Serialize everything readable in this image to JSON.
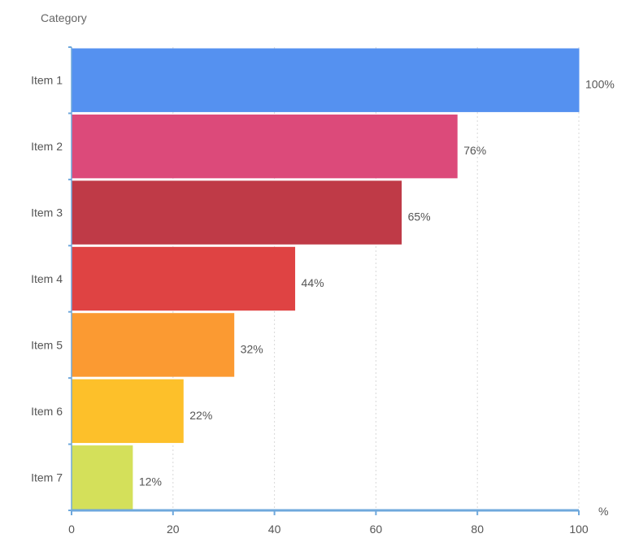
{
  "chart_data": {
    "type": "bar",
    "orientation": "horizontal",
    "y_axis_title": "Category",
    "x_unit_label": "%",
    "categories": [
      "Item 1",
      "Item 2",
      "Item 3",
      "Item 4",
      "Item 5",
      "Item 6",
      "Item 7"
    ],
    "values": [
      100,
      76,
      65,
      44,
      32,
      22,
      12
    ],
    "value_labels": [
      "100%",
      "76%",
      "65%",
      "44%",
      "32%",
      "22%",
      "12%"
    ],
    "colors": [
      "#5591f0",
      "#dc4a7a",
      "#bf3a47",
      "#df4343",
      "#fb9a32",
      "#fdc02a",
      "#d4e05a"
    ],
    "xlim": [
      0,
      100
    ],
    "x_ticks": [
      "0",
      "20",
      "40",
      "60",
      "80",
      "100"
    ],
    "grid": true
  }
}
